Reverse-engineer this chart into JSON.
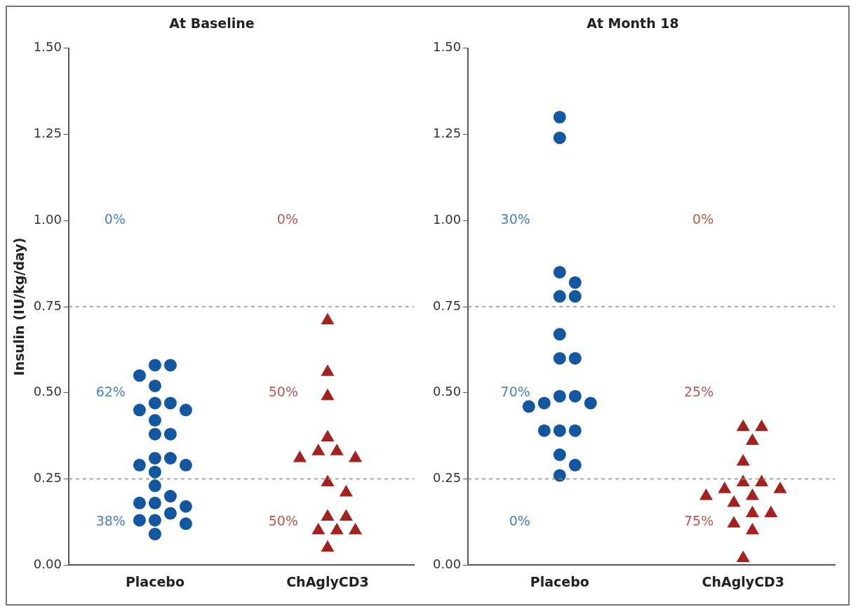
{
  "chart_data": [
    {
      "type": "scatter",
      "title": "At Baseline",
      "ylabel": "Insulin (IU/kg/day)",
      "categories": [
        "Placebo",
        "ChAglyCD3"
      ],
      "ylim": [
        0,
        1.5
      ],
      "yticks": [
        {
          "value": 0,
          "label": "0.00"
        },
        {
          "value": 0.25,
          "label": "0.25"
        },
        {
          "value": 0.5,
          "label": "0.50"
        },
        {
          "value": 0.75,
          "label": "0.75"
        },
        {
          "value": 1,
          "label": "1.00"
        },
        {
          "value": 1.25,
          "label": "1.25"
        },
        {
          "value": 1.5,
          "label": "1.50"
        }
      ],
      "grid": false,
      "series": [
        {
          "marker": "circle",
          "color": "#15579f",
          "x": [
            "Placebo",
            "Placebo",
            "Placebo",
            "Placebo",
            "Placebo",
            "Placebo",
            "Placebo",
            "Placebo",
            "Placebo",
            "Placebo",
            "Placebo",
            "Placebo",
            "Placebo",
            "Placebo",
            "Placebo",
            "Placebo",
            "Placebo",
            "Placebo",
            "Placebo",
            "Placebo",
            "Placebo",
            "Placebo",
            "Placebo",
            "Placebo",
            "Placebo",
            "Placebo"
          ],
          "values": [
            0.58,
            0.58,
            0.55,
            0.52,
            0.47,
            0.47,
            0.45,
            0.45,
            0.42,
            0.38,
            0.38,
            0.31,
            0.31,
            0.29,
            0.29,
            0.27,
            0.23,
            0.2,
            0.18,
            0.18,
            0.17,
            0.15,
            0.13,
            0.13,
            0.12,
            0.09
          ]
        },
        {
          "marker": "triangle",
          "color": "#a3221f",
          "x": [
            "ChAglyCD3",
            "ChAglyCD3",
            "ChAglyCD3",
            "ChAglyCD3",
            "ChAglyCD3",
            "ChAglyCD3",
            "ChAglyCD3",
            "ChAglyCD3",
            "ChAglyCD3",
            "ChAglyCD3",
            "ChAglyCD3",
            "ChAglyCD3",
            "ChAglyCD3",
            "ChAglyCD3",
            "ChAglyCD3",
            "ChAglyCD3"
          ],
          "values": [
            0.71,
            0.56,
            0.49,
            0.37,
            0.33,
            0.33,
            0.31,
            0.31,
            0.24,
            0.21,
            0.14,
            0.14,
            0.1,
            0.1,
            0.1,
            0.05
          ]
        }
      ],
      "ref_lines": [
        {
          "axis": "y",
          "value": 0.25,
          "color": "#8c8c8c",
          "line_style": "dashed"
        },
        {
          "axis": "y",
          "value": 0.75,
          "color": "#8c8c8c",
          "line_style": "dashed"
        }
      ],
      "annotations": [
        "0%",
        "62%",
        "38%",
        "0%",
        "50%",
        "50%"
      ]
    },
    {
      "type": "scatter",
      "title": "At Month 18",
      "categories": [
        "Placebo",
        "ChAglyCD3"
      ],
      "ylim": [
        0,
        1.5
      ],
      "yticks": [
        {
          "value": 0,
          "label": "0.00"
        },
        {
          "value": 0.25,
          "label": "0.25"
        },
        {
          "value": 0.5,
          "label": "0.50"
        },
        {
          "value": 0.75,
          "label": "0.75"
        },
        {
          "value": 1,
          "label": "1.00"
        },
        {
          "value": 1.25,
          "label": "1.25"
        },
        {
          "value": 1.5,
          "label": "1.50"
        }
      ],
      "grid": false,
      "series": [
        {
          "marker": "circle",
          "color": "#15579f",
          "x": [
            "Placebo",
            "Placebo",
            "Placebo",
            "Placebo",
            "Placebo",
            "Placebo",
            "Placebo",
            "Placebo",
            "Placebo",
            "Placebo",
            "Placebo",
            "Placebo",
            "Placebo",
            "Placebo",
            "Placebo",
            "Placebo",
            "Placebo",
            "Placebo",
            "Placebo",
            "Placebo"
          ],
          "values": [
            1.3,
            1.24,
            0.85,
            0.82,
            0.78,
            0.78,
            0.67,
            0.6,
            0.6,
            0.49,
            0.49,
            0.47,
            0.47,
            0.46,
            0.39,
            0.39,
            0.39,
            0.32,
            0.29,
            0.26
          ]
        },
        {
          "marker": "triangle",
          "color": "#a3221f",
          "x": [
            "ChAglyCD3",
            "ChAglyCD3",
            "ChAglyCD3",
            "ChAglyCD3",
            "ChAglyCD3",
            "ChAglyCD3",
            "ChAglyCD3",
            "ChAglyCD3",
            "ChAglyCD3",
            "ChAglyCD3",
            "ChAglyCD3",
            "ChAglyCD3",
            "ChAglyCD3",
            "ChAglyCD3",
            "ChAglyCD3",
            "ChAglyCD3"
          ],
          "values": [
            0.4,
            0.4,
            0.36,
            0.3,
            0.24,
            0.24,
            0.22,
            0.22,
            0.2,
            0.2,
            0.18,
            0.15,
            0.15,
            0.12,
            0.1,
            0.02
          ]
        }
      ],
      "ref_lines": [
        {
          "axis": "y",
          "value": 0.25,
          "color": "#8c8c8c",
          "line_style": "dashed"
        },
        {
          "axis": "y",
          "value": 0.75,
          "color": "#8c8c8c",
          "line_style": "dashed"
        }
      ],
      "annotations": [
        "30%",
        "70%",
        "0%",
        "0%",
        "25%",
        "75%"
      ]
    }
  ]
}
